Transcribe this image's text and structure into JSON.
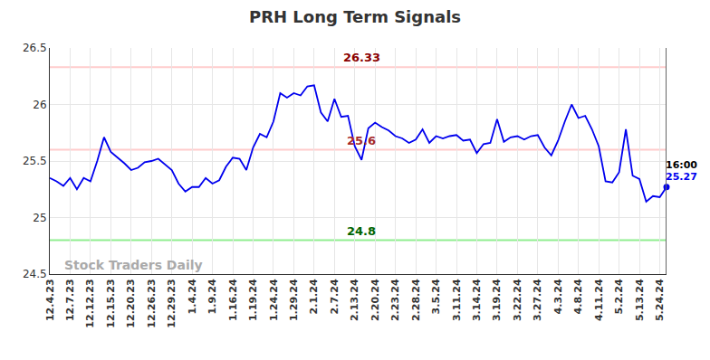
{
  "chart_data": {
    "type": "line",
    "title": "PRH Long Term Signals",
    "categories": [
      "12.4.23",
      null,
      null,
      "12.7.23",
      null,
      null,
      "12.12.23",
      null,
      null,
      "12.15.23",
      null,
      null,
      "12.20.23",
      null,
      null,
      "12.26.23",
      null,
      null,
      "12.29.23",
      null,
      null,
      "1.4.24",
      null,
      null,
      "1.9.24",
      null,
      null,
      "1.16.24",
      null,
      null,
      "1.19.24",
      null,
      null,
      "1.24.24",
      null,
      null,
      "1.29.24",
      null,
      null,
      "2.1.24",
      null,
      null,
      "2.7.24",
      null,
      null,
      "2.13.24",
      null,
      null,
      "2.20.24",
      null,
      null,
      "2.23.24",
      null,
      null,
      "2.28.24",
      null,
      null,
      "3.5.24",
      null,
      null,
      "3.11.24",
      null,
      null,
      "3.14.24",
      null,
      null,
      "3.19.24",
      null,
      null,
      "3.22.24",
      null,
      null,
      "3.27.24",
      null,
      null,
      "4.3.24",
      null,
      null,
      "4.8.24",
      null,
      null,
      "4.11.24",
      null,
      null,
      "5.2.24",
      null,
      null,
      "5.13.24",
      null,
      null,
      "5.24.24",
      null
    ],
    "values": [
      25.35,
      25.32,
      25.28,
      25.35,
      25.25,
      25.35,
      25.32,
      25.5,
      25.71,
      25.58,
      25.53,
      25.48,
      25.42,
      25.44,
      25.49,
      25.5,
      25.52,
      25.47,
      25.42,
      25.3,
      25.23,
      25.27,
      25.27,
      25.35,
      25.3,
      25.33,
      25.45,
      25.53,
      25.52,
      25.42,
      25.62,
      25.74,
      25.71,
      25.85,
      26.1,
      26.06,
      26.1,
      26.08,
      26.16,
      26.17,
      25.93,
      25.85,
      26.05,
      25.89,
      25.9,
      25.63,
      25.51,
      25.79,
      25.84,
      25.8,
      25.77,
      25.72,
      25.7,
      25.66,
      25.69,
      25.78,
      25.66,
      25.72,
      25.7,
      25.72,
      25.73,
      25.68,
      25.69,
      25.57,
      25.65,
      25.66,
      25.87,
      25.67,
      25.71,
      25.72,
      25.69,
      25.72,
      25.73,
      25.62,
      25.55,
      25.68,
      25.85,
      26.0,
      25.88,
      25.9,
      25.78,
      25.63,
      25.32,
      25.31,
      25.4,
      25.78,
      25.37,
      25.34,
      25.14,
      25.19,
      25.18,
      25.27
    ],
    "color": "#0000ee",
    "ylim": [
      24.5,
      26.5
    ],
    "yticks": [
      24.5,
      25,
      25.5,
      26,
      26.5
    ],
    "grid": true,
    "levels": [
      {
        "value": 26.33,
        "label": "26.33",
        "color": "#ffcccc",
        "text_color": "#8b0000"
      },
      {
        "value": 25.6,
        "label": "25.6",
        "color": "#ffcccc",
        "text_color": "#a52a2a"
      },
      {
        "value": 24.8,
        "label": "24.8",
        "color": "#90ee90",
        "text_color": "#006400"
      }
    ],
    "last_time_label": "16:00",
    "watermark": "Stock Traders Daily"
  }
}
